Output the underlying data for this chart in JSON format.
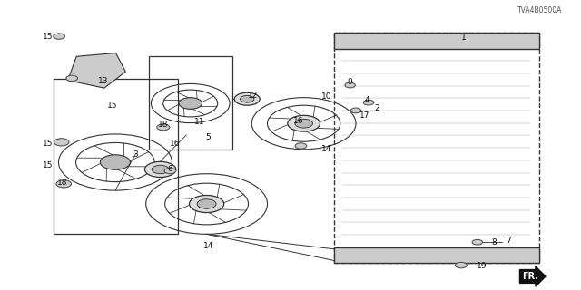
{
  "background_color": "#ffffff",
  "line_color": "#333333",
  "diagram_code": "TVA4B0500A"
}
